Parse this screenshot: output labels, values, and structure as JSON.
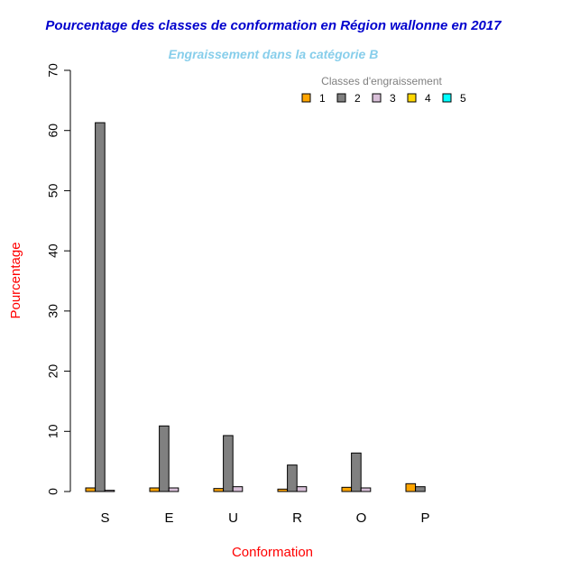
{
  "chart_data": {
    "type": "bar",
    "title": "Pourcentage des classes de conformation en Région wallonne en 2017",
    "subtitle": "Engraissement dans la catégorie B",
    "xlabel": "Conformation",
    "ylabel": "Pourcentage",
    "ylim": [
      0,
      70
    ],
    "yticks": [
      "0",
      "10",
      "20",
      "30",
      "40",
      "50",
      "60",
      "70"
    ],
    "categories": [
      "S",
      "E",
      "U",
      "R",
      "O",
      "P"
    ],
    "legend": {
      "title": "Classes d'engraissement",
      "position": "top-right",
      "horizontal": true
    },
    "series": [
      {
        "name": "1",
        "color": "#ffa500",
        "values": [
          0.6,
          0.6,
          0.5,
          0.4,
          0.7,
          1.3
        ]
      },
      {
        "name": "2",
        "color": "#808080",
        "values": [
          61.3,
          10.9,
          9.3,
          4.4,
          6.4,
          0.8
        ]
      },
      {
        "name": "3",
        "color": "#d8bfd8",
        "values": [
          0.2,
          0.6,
          0.8,
          0.8,
          0.6,
          0
        ]
      },
      {
        "name": "4",
        "color": "#ffd700",
        "values": [
          0,
          0,
          0,
          0,
          0,
          0
        ]
      },
      {
        "name": "5",
        "color": "#00ffff",
        "values": [
          0,
          0,
          0,
          0,
          0,
          0
        ]
      }
    ],
    "colors": {
      "title": "#0000cd",
      "subtitle": "#87ceeb",
      "axis_label": "#ff0000",
      "legend_title": "#808080",
      "bar_border": "#000000"
    }
  }
}
